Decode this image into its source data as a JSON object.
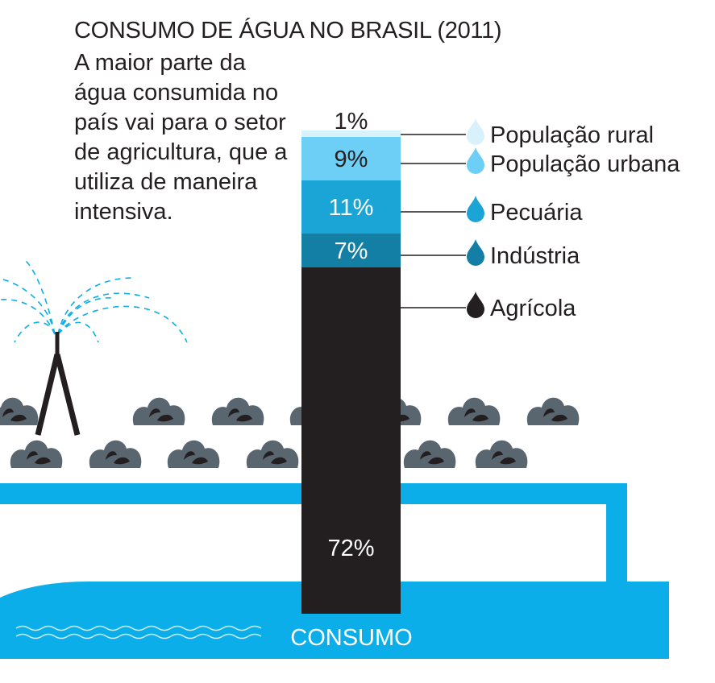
{
  "title": "CONSUMO DE ÁGUA NO BRASIL (2011)",
  "subtitle": "A maior parte da água consumida no país vai para o setor de agricultura, que a utiliza de maneira intensiva.",
  "bar_label": "CONSUMO",
  "chart_data": {
    "type": "bar",
    "stacked": true,
    "categories": [
      "CONSUMO"
    ],
    "series": [
      {
        "name": "Agrícola",
        "value": 72,
        "label": "72%",
        "color": "#231f20",
        "text_color": "#ffffff"
      },
      {
        "name": "Indústria",
        "value": 7,
        "label": "7%",
        "color": "#147fa5",
        "text_color": "#ffffff"
      },
      {
        "name": "Pecuária",
        "value": 11,
        "label": "11%",
        "color": "#1ba5d6",
        "text_color": "#ffffff"
      },
      {
        "name": "População urbana",
        "value": 9,
        "label": "9%",
        "color": "#6dcff6",
        "text_color": "#231f20"
      },
      {
        "name": "População rural",
        "value": 1,
        "label": "1%",
        "color": "#d9f1fb",
        "text_color": "#231f20"
      }
    ]
  },
  "colors": {
    "water": "#0baee9",
    "plant": "#59656f",
    "text": "#231f20"
  },
  "icons": {
    "legend": "water-drop-icon",
    "scene": "sprinkler-icon",
    "crops": "plant-icon"
  }
}
